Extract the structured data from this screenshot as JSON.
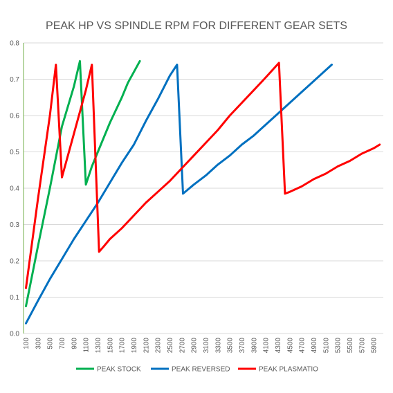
{
  "chart_data": {
    "type": "line",
    "title": "PEAK HP VS SPINDLE RPM FOR DIFFERENT GEAR SETS",
    "xlabel": "",
    "ylabel": "",
    "xlim": [
      100,
      6000
    ],
    "ylim": [
      0,
      0.8
    ],
    "x_ticks": [
      "100",
      "300",
      "500",
      "700",
      "900",
      "1100",
      "1300",
      "1500",
      "1700",
      "1900",
      "2100",
      "2300",
      "2500",
      "2700",
      "2900",
      "3100",
      "3300",
      "3500",
      "3700",
      "3900",
      "4100",
      "4300",
      "4500",
      "4700",
      "4900",
      "5100",
      "5300",
      "5500",
      "5700",
      "5900"
    ],
    "y_ticks": [
      "0.0",
      "0.1",
      "0.2",
      "0.3",
      "0.4",
      "0.5",
      "0.6",
      "0.7",
      "0.8"
    ],
    "grid": true,
    "legend_position": "bottom",
    "series": [
      {
        "name": "PEAK STOCK",
        "color": "#00b050",
        "points": [
          [
            100,
            0.075
          ],
          [
            300,
            0.24
          ],
          [
            500,
            0.4
          ],
          [
            700,
            0.57
          ],
          [
            900,
            0.68
          ],
          [
            1000,
            0.75
          ],
          [
            1100,
            0.41
          ],
          [
            1200,
            0.46
          ],
          [
            1400,
            0.54
          ],
          [
            1500,
            0.58
          ],
          [
            1700,
            0.65
          ],
          [
            1800,
            0.69
          ],
          [
            2000,
            0.75
          ]
        ]
      },
      {
        "name": "PEAK REVERSED",
        "color": "#0070c0",
        "points": [
          [
            100,
            0.028
          ],
          [
            300,
            0.09
          ],
          [
            500,
            0.15
          ],
          [
            700,
            0.205
          ],
          [
            900,
            0.26
          ],
          [
            1100,
            0.31
          ],
          [
            1300,
            0.36
          ],
          [
            1500,
            0.415
          ],
          [
            1700,
            0.47
          ],
          [
            1900,
            0.52
          ],
          [
            2100,
            0.585
          ],
          [
            2300,
            0.645
          ],
          [
            2500,
            0.71
          ],
          [
            2620,
            0.74
          ],
          [
            2720,
            0.385
          ],
          [
            2900,
            0.41
          ],
          [
            3100,
            0.435
          ],
          [
            3300,
            0.465
          ],
          [
            3500,
            0.49
          ],
          [
            3700,
            0.52
          ],
          [
            3900,
            0.545
          ],
          [
            4100,
            0.575
          ],
          [
            4300,
            0.605
          ],
          [
            4500,
            0.635
          ],
          [
            4700,
            0.665
          ],
          [
            4900,
            0.695
          ],
          [
            5100,
            0.725
          ],
          [
            5200,
            0.74
          ]
        ]
      },
      {
        "name": "PEAK PLASMATIO",
        "color": "#ff0000",
        "points": [
          [
            100,
            0.125
          ],
          [
            300,
            0.37
          ],
          [
            500,
            0.6
          ],
          [
            600,
            0.74
          ],
          [
            700,
            0.43
          ],
          [
            900,
            0.55
          ],
          [
            1100,
            0.67
          ],
          [
            1200,
            0.74
          ],
          [
            1320,
            0.225
          ],
          [
            1400,
            0.24
          ],
          [
            1500,
            0.26
          ],
          [
            1700,
            0.29
          ],
          [
            1900,
            0.325
          ],
          [
            2100,
            0.36
          ],
          [
            2300,
            0.39
          ],
          [
            2500,
            0.42
          ],
          [
            2700,
            0.455
          ],
          [
            2900,
            0.49
          ],
          [
            3100,
            0.525
          ],
          [
            3300,
            0.56
          ],
          [
            3500,
            0.6
          ],
          [
            3700,
            0.635
          ],
          [
            3900,
            0.67
          ],
          [
            4100,
            0.705
          ],
          [
            4320,
            0.745
          ],
          [
            4420,
            0.385
          ],
          [
            4500,
            0.39
          ],
          [
            4700,
            0.405
          ],
          [
            4900,
            0.425
          ],
          [
            5100,
            0.44
          ],
          [
            5300,
            0.46
          ],
          [
            5500,
            0.475
          ],
          [
            5700,
            0.495
          ],
          [
            5900,
            0.51
          ],
          [
            6000,
            0.52
          ]
        ]
      }
    ]
  }
}
